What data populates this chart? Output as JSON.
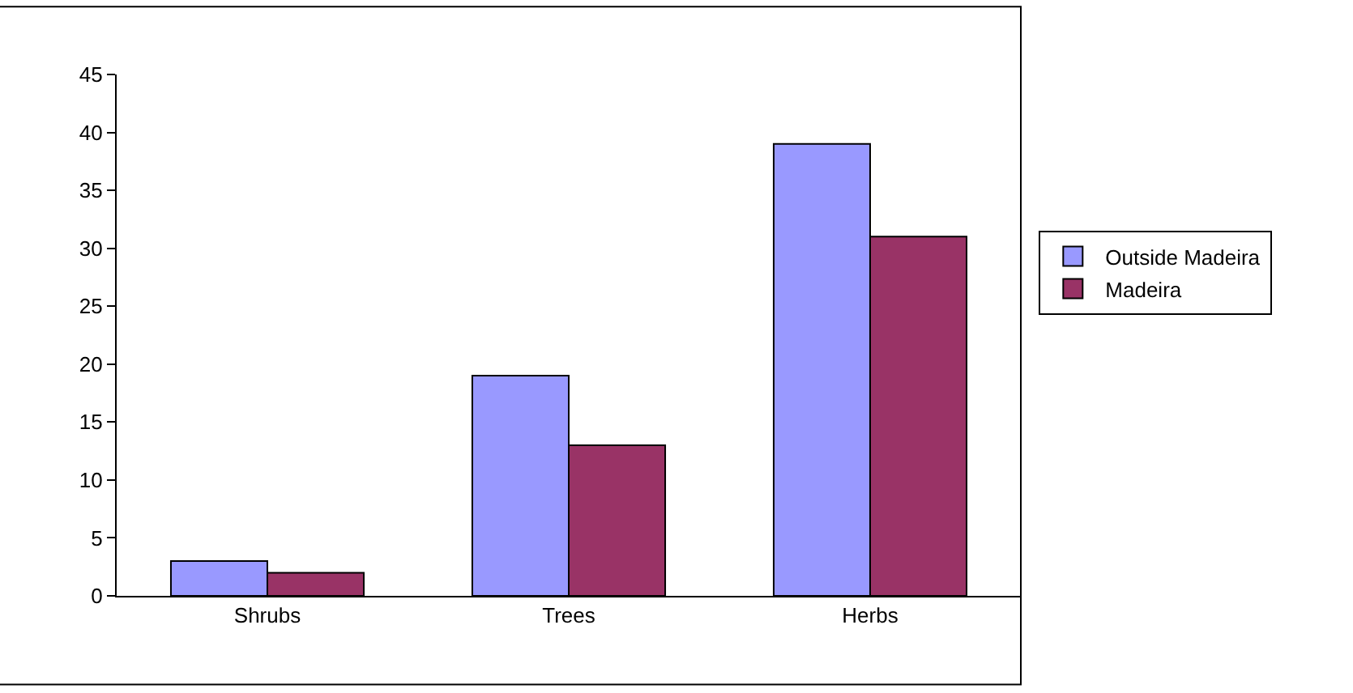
{
  "chart_data": {
    "type": "bar",
    "categories": [
      "Shrubs",
      "Trees",
      "Herbs"
    ],
    "series": [
      {
        "name": "Outside Madeira",
        "color": "#9999ff",
        "values": [
          3,
          19,
          39
        ]
      },
      {
        "name": "Madeira",
        "color": "#993366",
        "values": [
          2,
          13,
          31
        ]
      }
    ],
    "ylim": [
      0,
      45
    ],
    "yticks": [
      0,
      5,
      10,
      15,
      20,
      25,
      30,
      35,
      40,
      45
    ],
    "grid": false,
    "legend": "right"
  }
}
